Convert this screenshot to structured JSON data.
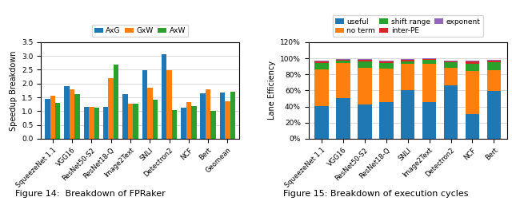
{
  "chart_data": [
    {
      "type": "bar",
      "categories": [
        "SqueezeNet 1.1",
        "VGG16",
        "ResNet50-S2",
        "ResNet18-Q",
        "Image2Text",
        "SNLI",
        "Detectron2",
        "NCF",
        "Bert",
        "Geomean"
      ],
      "series": [
        {
          "name": "AxG",
          "values": [
            1.45,
            1.9,
            1.15,
            1.15,
            1.62,
            2.48,
            3.05,
            1.13,
            1.65,
            1.68
          ]
        },
        {
          "name": "GxW",
          "values": [
            1.55,
            1.78,
            1.15,
            2.2,
            1.27,
            1.85,
            2.48,
            1.33,
            1.8,
            1.35
          ]
        },
        {
          "name": "AxW",
          "values": [
            1.3,
            1.62,
            1.12,
            2.68,
            1.28,
            1.42,
            1.05,
            1.17,
            1.02,
            1.7
          ]
        }
      ],
      "y_label": "Speedup Breakdown",
      "ylim": [
        0,
        3.5
      ],
      "yticks": [
        0.0,
        0.5,
        1.0,
        1.5,
        2.0,
        2.5,
        3.0,
        3.5
      ],
      "grid": true,
      "legend": "upper center",
      "annotations": [
        "Figure 14:  Breakdown of FPRaker"
      ]
    },
    {
      "type": "bar",
      "stacked": true,
      "categories": [
        "SqueezeNet 1.1",
        "VGG16",
        "ResNet50-S2",
        "ResNet18-Q",
        "SNLI",
        "Image2Text",
        "Detectron2",
        "NCF",
        "Bert"
      ],
      "series": [
        {
          "name": "useful",
          "values": [
            0.41,
            0.5,
            0.43,
            0.46,
            0.6,
            0.46,
            0.66,
            0.31,
            0.59
          ]
        },
        {
          "name": "no term",
          "values": [
            0.45,
            0.445,
            0.455,
            0.415,
            0.33,
            0.47,
            0.22,
            0.535,
            0.265
          ]
        },
        {
          "name": "shift range",
          "values": [
            0.08,
            0.025,
            0.075,
            0.065,
            0.03,
            0.055,
            0.07,
            0.09,
            0.095
          ]
        },
        {
          "name": "inter-PE",
          "values": [
            0.022,
            0.015,
            0.02,
            0.02,
            0.022,
            0.01,
            0.012,
            0.028,
            0.022
          ]
        },
        {
          "name": "exponent",
          "values": [
            0.012,
            0.01,
            0.01,
            0.012,
            0.01,
            0.01,
            0.01,
            0.01,
            0.01
          ]
        }
      ],
      "y_label": "Lane Efficiency",
      "ylim": [
        0,
        1.2
      ],
      "yticks": [
        {
          "value": 0,
          "label": "0%"
        },
        {
          "value": 0.2,
          "label": "20%"
        },
        {
          "value": 0.4,
          "label": "40%"
        },
        {
          "value": 0.6,
          "label": "60%"
        },
        {
          "value": 0.8,
          "label": "80%"
        },
        {
          "value": 1.0,
          "label": "100%"
        },
        {
          "value": 1.2,
          "label": "120%"
        }
      ],
      "grid": true,
      "legend": "upper center",
      "annotations": [
        "Figure 15: Breakdown of execution cycles"
      ]
    }
  ]
}
